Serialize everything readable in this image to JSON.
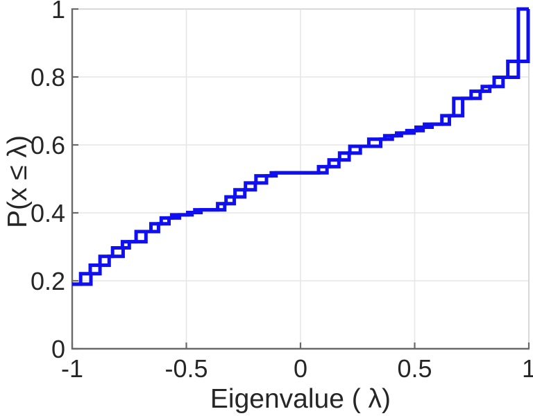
{
  "figure": {
    "xlabel": "Eigenvalue ( λ)",
    "ylabel": "P(x ≤ λ)"
  },
  "chart_data": {
    "type": "line",
    "subtype": "empirical-cdf-stairs",
    "title": "",
    "xlabel": "Eigenvalue ( λ)",
    "ylabel": "P(x ≤ λ)",
    "xlim": [
      -1,
      1
    ],
    "ylim": [
      0,
      1
    ],
    "xticks": {
      "values": [
        -1,
        -0.5,
        0,
        0.5,
        1
      ],
      "labels": [
        "-1",
        "-0.5",
        "0",
        "0.5",
        "1"
      ]
    },
    "yticks": {
      "values": [
        0,
        0.2,
        0.4,
        0.6,
        0.8,
        1
      ],
      "labels": [
        "0",
        "0.2",
        "0.4",
        "0.6",
        "0.8",
        "1"
      ]
    },
    "grid": true,
    "legend": null,
    "colors": {
      "line": "#0f0ff0",
      "grid": "#e6e6e6",
      "axis": "#696969",
      "box": "#d9d9d9",
      "text": "#262626",
      "background": "#ffffff"
    },
    "line_width": 5,
    "series": [
      {
        "name": "ecdf-curve-1",
        "steps": [
          [
            -1,
            0.19
          ],
          [
            -0.963,
            0.221
          ],
          [
            -0.921,
            0.246
          ],
          [
            -0.878,
            0.272
          ],
          [
            -0.823,
            0.297
          ],
          [
            -0.78,
            0.315
          ],
          [
            -0.72,
            0.345
          ],
          [
            -0.655,
            0.368
          ],
          [
            -0.61,
            0.385
          ],
          [
            -0.564,
            0.394
          ],
          [
            -0.494,
            0.401
          ],
          [
            -0.463,
            0.409
          ],
          [
            -0.363,
            0.427
          ],
          [
            -0.326,
            0.447
          ],
          [
            -0.287,
            0.468
          ],
          [
            -0.241,
            0.488
          ],
          [
            -0.195,
            0.509
          ],
          [
            -0.128,
            0.518
          ],
          [
            0.079,
            0.536
          ],
          [
            0.125,
            0.556
          ],
          [
            0.171,
            0.576
          ],
          [
            0.216,
            0.596
          ],
          [
            0.299,
            0.617
          ],
          [
            0.369,
            0.627
          ],
          [
            0.421,
            0.635
          ],
          [
            0.466,
            0.642
          ],
          [
            0.506,
            0.652
          ],
          [
            0.543,
            0.661
          ],
          [
            0.619,
            0.686
          ],
          [
            0.671,
            0.737
          ],
          [
            0.747,
            0.758
          ],
          [
            0.796,
            0.772
          ],
          [
            0.848,
            0.799
          ],
          [
            0.908,
            0.846
          ],
          [
            0.954,
            1.0
          ]
        ]
      },
      {
        "name": "ecdf-curve-2",
        "steps": [
          [
            -1,
            0.19
          ],
          [
            -0.918,
            0.221
          ],
          [
            -0.878,
            0.246
          ],
          [
            -0.838,
            0.272
          ],
          [
            -0.777,
            0.297
          ],
          [
            -0.75,
            0.315
          ],
          [
            -0.677,
            0.345
          ],
          [
            -0.622,
            0.368
          ],
          [
            -0.576,
            0.385
          ],
          [
            -0.53,
            0.394
          ],
          [
            -0.475,
            0.401
          ],
          [
            -0.436,
            0.409
          ],
          [
            -0.332,
            0.427
          ],
          [
            -0.29,
            0.447
          ],
          [
            -0.244,
            0.468
          ],
          [
            -0.198,
            0.488
          ],
          [
            -0.149,
            0.509
          ],
          [
            -0.107,
            0.518
          ],
          [
            0.116,
            0.536
          ],
          [
            0.168,
            0.556
          ],
          [
            0.213,
            0.576
          ],
          [
            0.262,
            0.596
          ],
          [
            0.351,
            0.617
          ],
          [
            0.402,
            0.627
          ],
          [
            0.442,
            0.635
          ],
          [
            0.497,
            0.642
          ],
          [
            0.537,
            0.652
          ],
          [
            0.576,
            0.661
          ],
          [
            0.652,
            0.686
          ],
          [
            0.71,
            0.737
          ],
          [
            0.787,
            0.758
          ],
          [
            0.829,
            0.772
          ],
          [
            0.887,
            0.799
          ],
          [
            0.954,
            0.846
          ],
          [
            0.997,
            1.0
          ]
        ]
      }
    ]
  }
}
